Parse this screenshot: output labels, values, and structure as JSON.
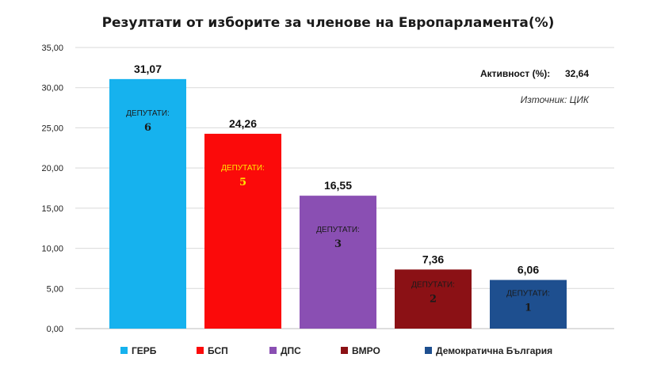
{
  "chart_data": {
    "type": "bar",
    "title": "Резултати от изборите за членове на Европарламента(%)",
    "categories": [
      "ГЕРБ",
      "БСП",
      "ДПС",
      "ВМРО",
      "Демократична България"
    ],
    "values": [
      31.07,
      24.26,
      16.55,
      7.36,
      6.06
    ],
    "value_labels": [
      "31,07",
      "24,26",
      "16,55",
      "7,36",
      "6,06"
    ],
    "colors": [
      "#16b2ee",
      "#fb0a0a",
      "#8a4fb3",
      "#8b1115",
      "#1e4f8f"
    ],
    "seat_label": "ДЕПУТАТИ:",
    "seats": [
      "6",
      "5",
      "3",
      "2",
      "1"
    ],
    "seat_text_colors": [
      "#1a1a1a",
      "#ffe600",
      "#1a1a1a",
      "#1a1a1a",
      "#1a1a1a"
    ],
    "ylim": [
      0,
      35
    ],
    "yticks": [
      "0,00",
      "5,00",
      "10,00",
      "15,00",
      "20,00",
      "25,00",
      "30,00",
      "35,00"
    ],
    "grid": true,
    "legend_position": "bottom"
  },
  "turnout_label": "Активност (%):",
  "turnout_value": "32,64",
  "source": "Източник: ЦИК"
}
